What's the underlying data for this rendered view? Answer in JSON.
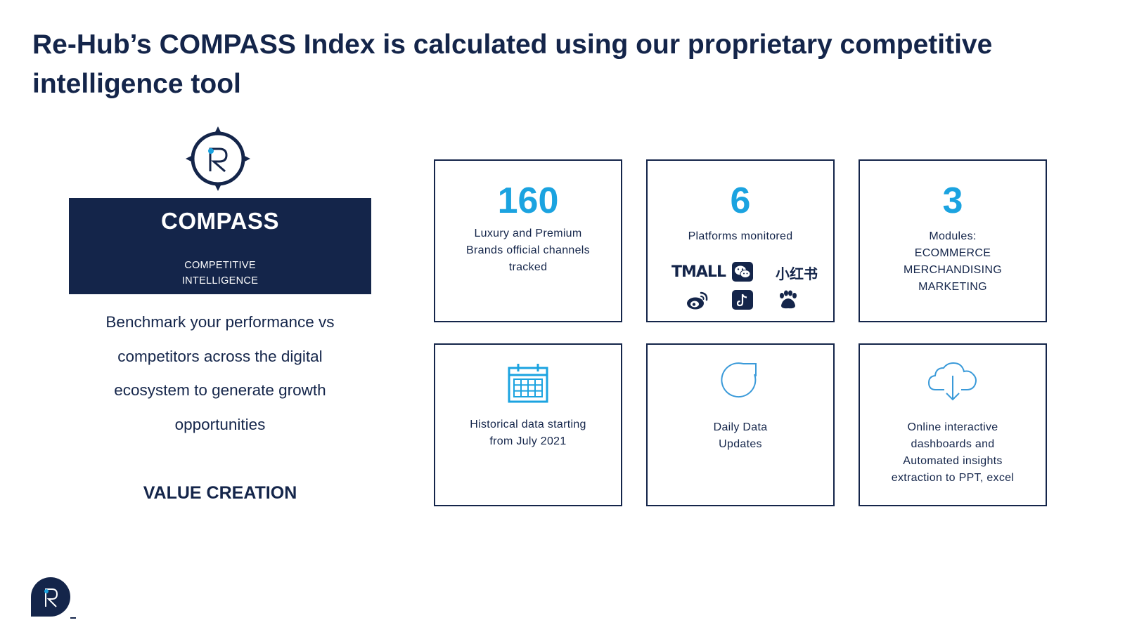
{
  "slide": {
    "title_line1": "Re-Hub’s COMPASS Index is calculated using our proprietary competitive",
    "title_line2": "intelligence tool"
  },
  "compass": {
    "name": "COMPASS",
    "subtitle_line1": "COMPETITIVE",
    "subtitle_line2": "INTELLIGENCE",
    "benchmark_line1": "Benchmark your performance vs",
    "benchmark_line2": "competitors across the digital",
    "benchmark_line3": "ecosystem to generate growth",
    "benchmark_line4": "opportunities",
    "value_label": "VALUE CREATION"
  },
  "stats": {
    "brands": {
      "number": "160",
      "line1": "Luxury and Premium",
      "line2": "Brands official channels",
      "line3": "tracked"
    },
    "platforms": {
      "number": "6",
      "label": "Platforms monitored",
      "logos": [
        "tmall-logo",
        "wechat-icon",
        "xiaohongshu-logo",
        "weibo-icon",
        "douyin-icon",
        "baidu-icon"
      ],
      "tmall_text": "TMALL",
      "xhs_text": "小红书"
    },
    "modules": {
      "number": "3",
      "label": "Modules:",
      "items": [
        "ECOMMERCE",
        "MERCHANDISING",
        "MARKETING"
      ]
    },
    "history": {
      "icon": "calendar-icon",
      "line1": "Historical data starting",
      "line2": "from July 2021"
    },
    "daily": {
      "icon": "refresh-icon",
      "line1": "Daily Data",
      "line2": "Updates"
    },
    "online": {
      "icon": "cloud-download-icon",
      "line1": "Online interactive",
      "line2": "dashboards and",
      "line3": "Automated insights",
      "line4": "extraction to PPT, excel"
    }
  },
  "colors": {
    "navy": "#14254a",
    "accent_blue": "#1ba3e0",
    "icon_blue": "#3a9ad9"
  }
}
